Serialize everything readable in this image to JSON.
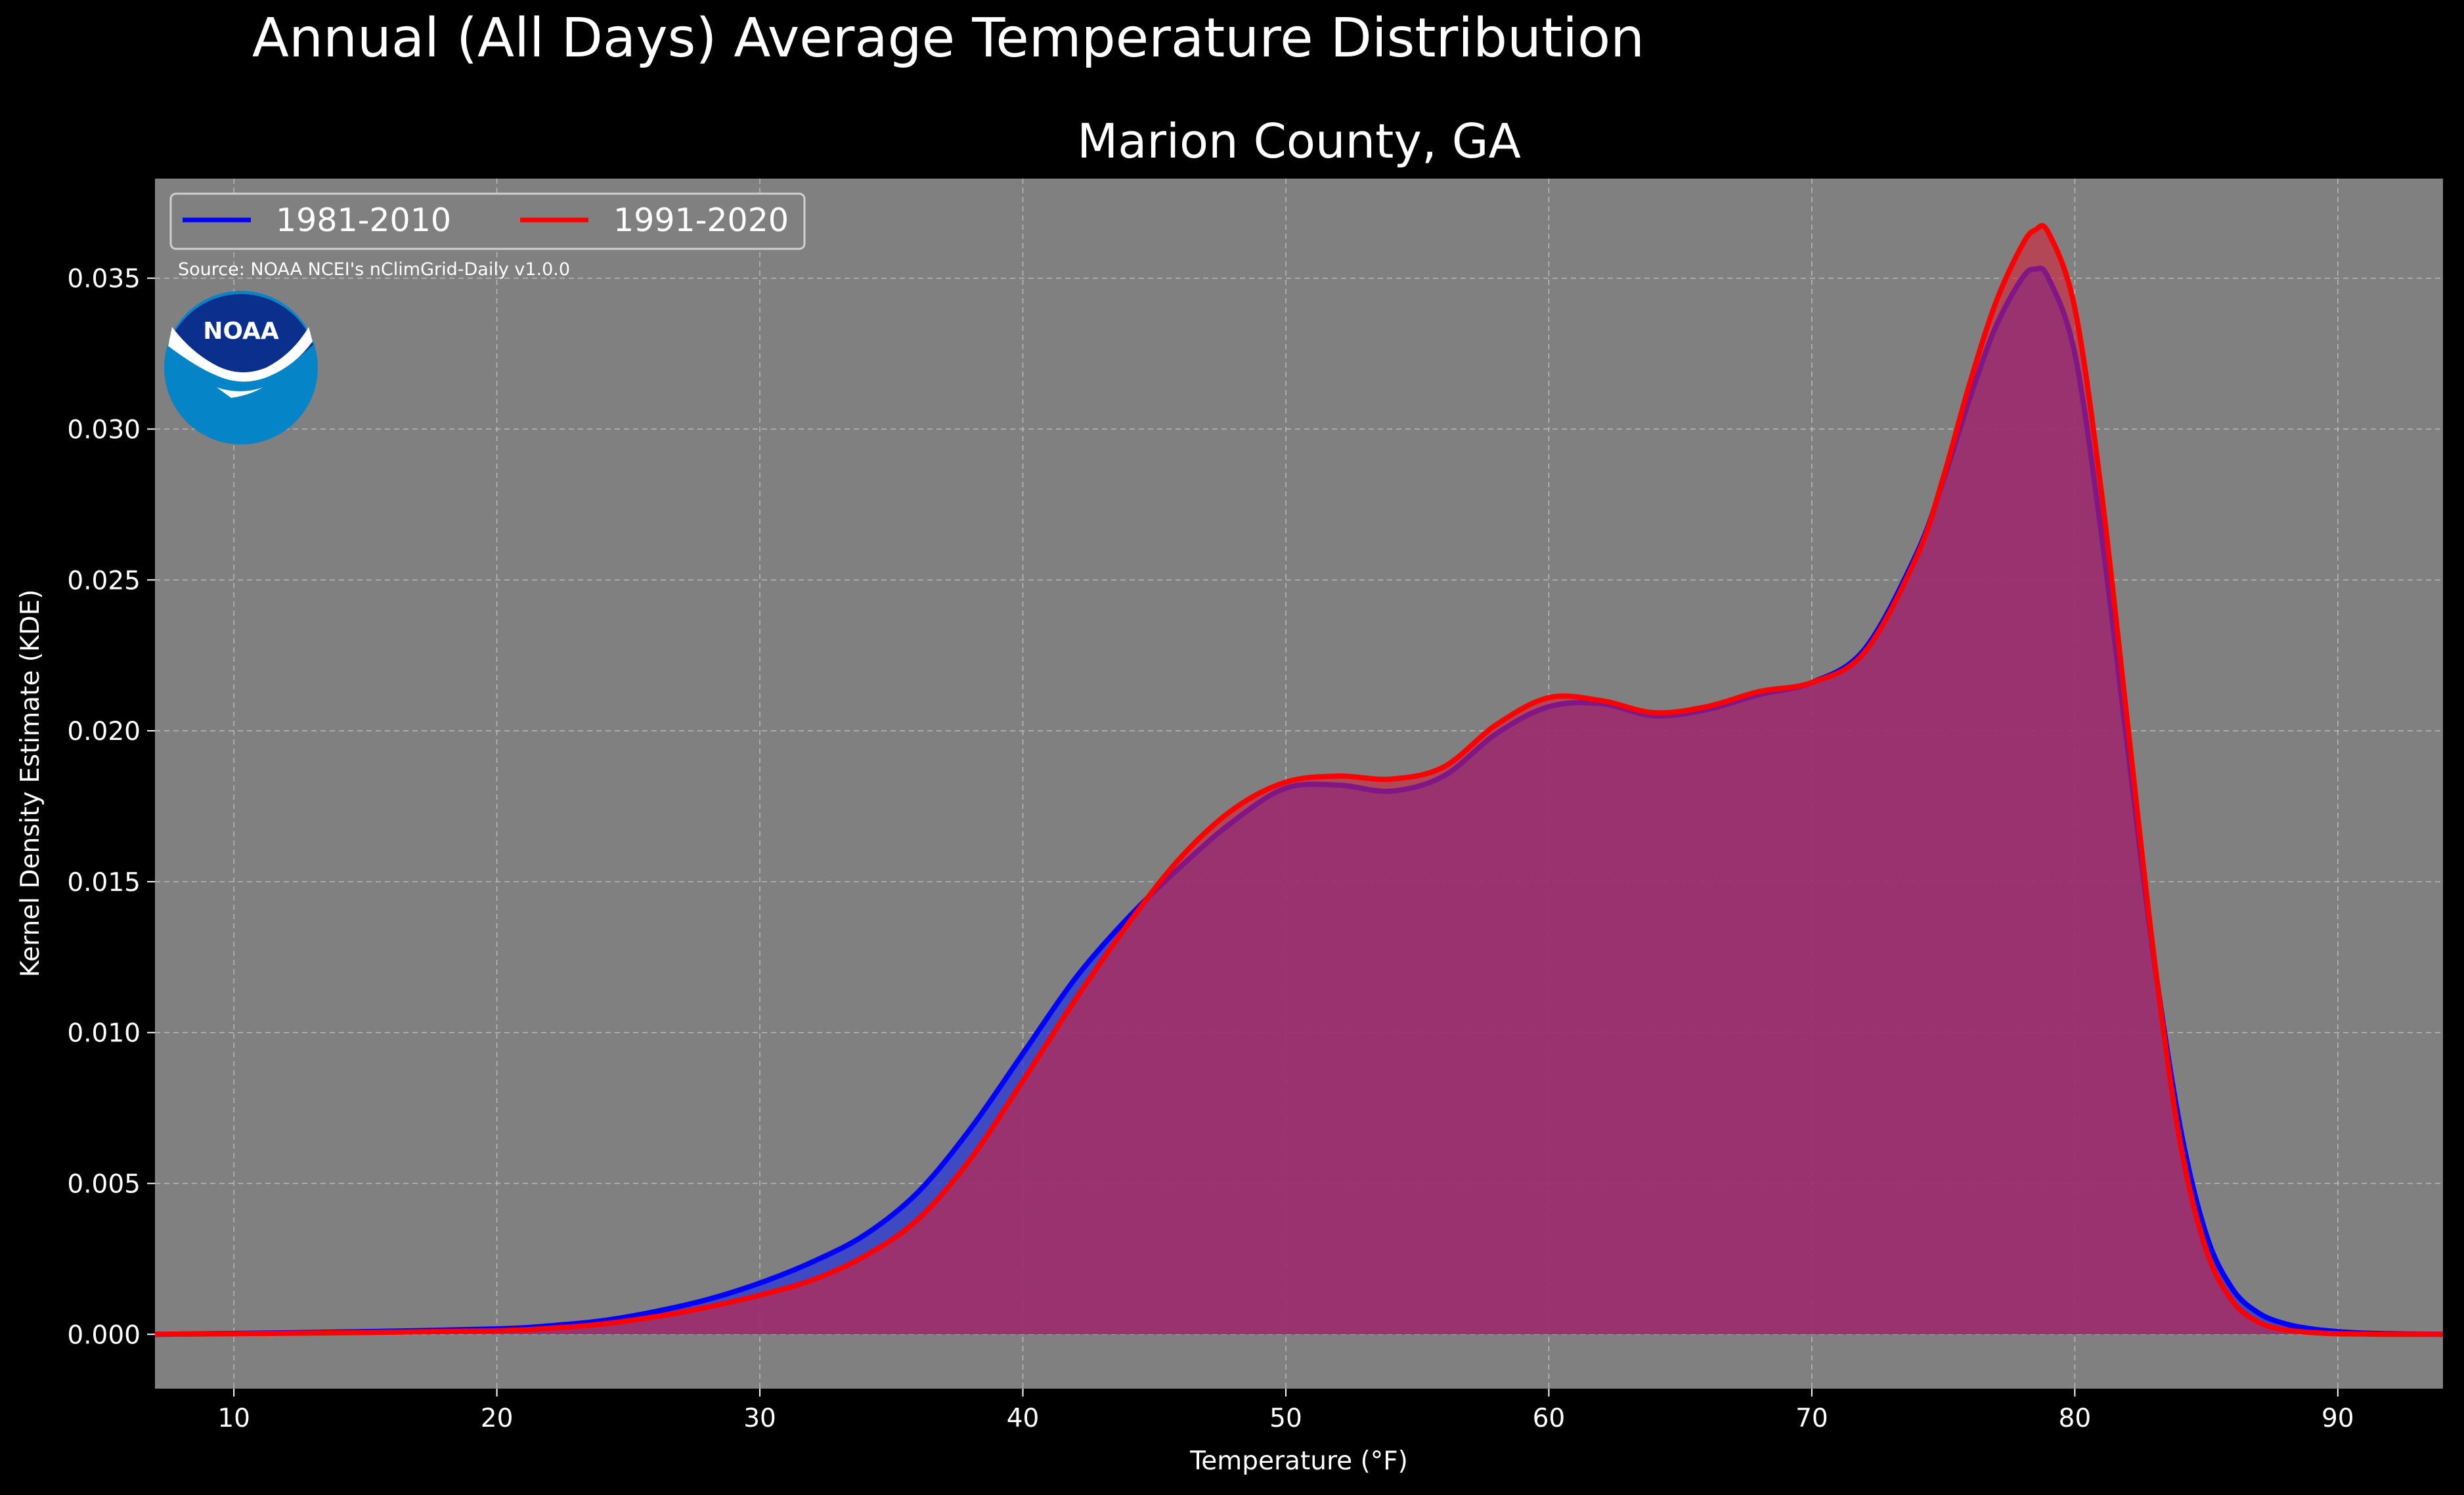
{
  "chart_data": {
    "type": "area",
    "title": "Annual (All Days) Average Temperature Distribution",
    "subtitle": "Marion County, GA",
    "xlabel": "Temperature (°F)",
    "ylabel": "Kernel Density Estimate (KDE)",
    "xlim": [
      7,
      94
    ],
    "ylim": [
      -0.0018,
      0.0383
    ],
    "xticks": [
      10,
      20,
      30,
      40,
      50,
      60,
      70,
      80,
      90
    ],
    "yticks": [
      0.0,
      0.005,
      0.01,
      0.015,
      0.02,
      0.025,
      0.03,
      0.035
    ],
    "ytick_labels": [
      "0.000",
      "0.005",
      "0.010",
      "0.015",
      "0.020",
      "0.025",
      "0.030",
      "0.035"
    ],
    "grid": true,
    "legend_position": "top-left",
    "source_note": "Source: NOAA NCEI's nClimGrid-Daily v1.0.0",
    "logo": "NOAA",
    "x": [
      7,
      10,
      15,
      20,
      22,
      24,
      26,
      28,
      30,
      32,
      34,
      36,
      38,
      40,
      42,
      44,
      46,
      48,
      50,
      52,
      54,
      56,
      58,
      60,
      62,
      64,
      66,
      68,
      70,
      72,
      74,
      75,
      76,
      77,
      78,
      78.5,
      79,
      80,
      81,
      82,
      83,
      84,
      85,
      86,
      87,
      88,
      89,
      90,
      91,
      92,
      94
    ],
    "series": [
      {
        "name": "1981-2010",
        "color": "#0000ff",
        "fill": "#2a38d8",
        "values": [
          0.0,
          3e-05,
          9e-05,
          0.00018,
          0.00028,
          0.00045,
          0.00075,
          0.00115,
          0.0017,
          0.0024,
          0.0033,
          0.0047,
          0.0068,
          0.0093,
          0.0118,
          0.0138,
          0.0155,
          0.017,
          0.0181,
          0.0182,
          0.018,
          0.0185,
          0.0199,
          0.0208,
          0.0209,
          0.0205,
          0.0207,
          0.0212,
          0.0216,
          0.0227,
          0.0259,
          0.0283,
          0.031,
          0.0334,
          0.035,
          0.0353,
          0.035,
          0.0325,
          0.0266,
          0.0195,
          0.0125,
          0.0069,
          0.0033,
          0.0015,
          0.0007,
          0.00035,
          0.00018,
          9e-05,
          4e-05,
          2e-05,
          0.0
        ]
      },
      {
        "name": "1991-2020",
        "color": "#ff0000",
        "fill": "#d0243c",
        "values": [
          0.0,
          2e-05,
          6e-05,
          0.00012,
          0.0002,
          0.00034,
          0.00058,
          0.0009,
          0.0013,
          0.0018,
          0.0026,
          0.0038,
          0.0058,
          0.0084,
          0.0111,
          0.0136,
          0.0158,
          0.0174,
          0.0183,
          0.0185,
          0.0184,
          0.0188,
          0.0202,
          0.0211,
          0.021,
          0.0206,
          0.0208,
          0.0213,
          0.0216,
          0.0226,
          0.0258,
          0.0284,
          0.0315,
          0.0342,
          0.0361,
          0.0366,
          0.0365,
          0.034,
          0.028,
          0.0203,
          0.0126,
          0.0064,
          0.0028,
          0.0011,
          0.0004,
          0.00015,
          6e-05,
          2e-05,
          1e-05,
          0.0,
          0.0
        ]
      }
    ]
  }
}
